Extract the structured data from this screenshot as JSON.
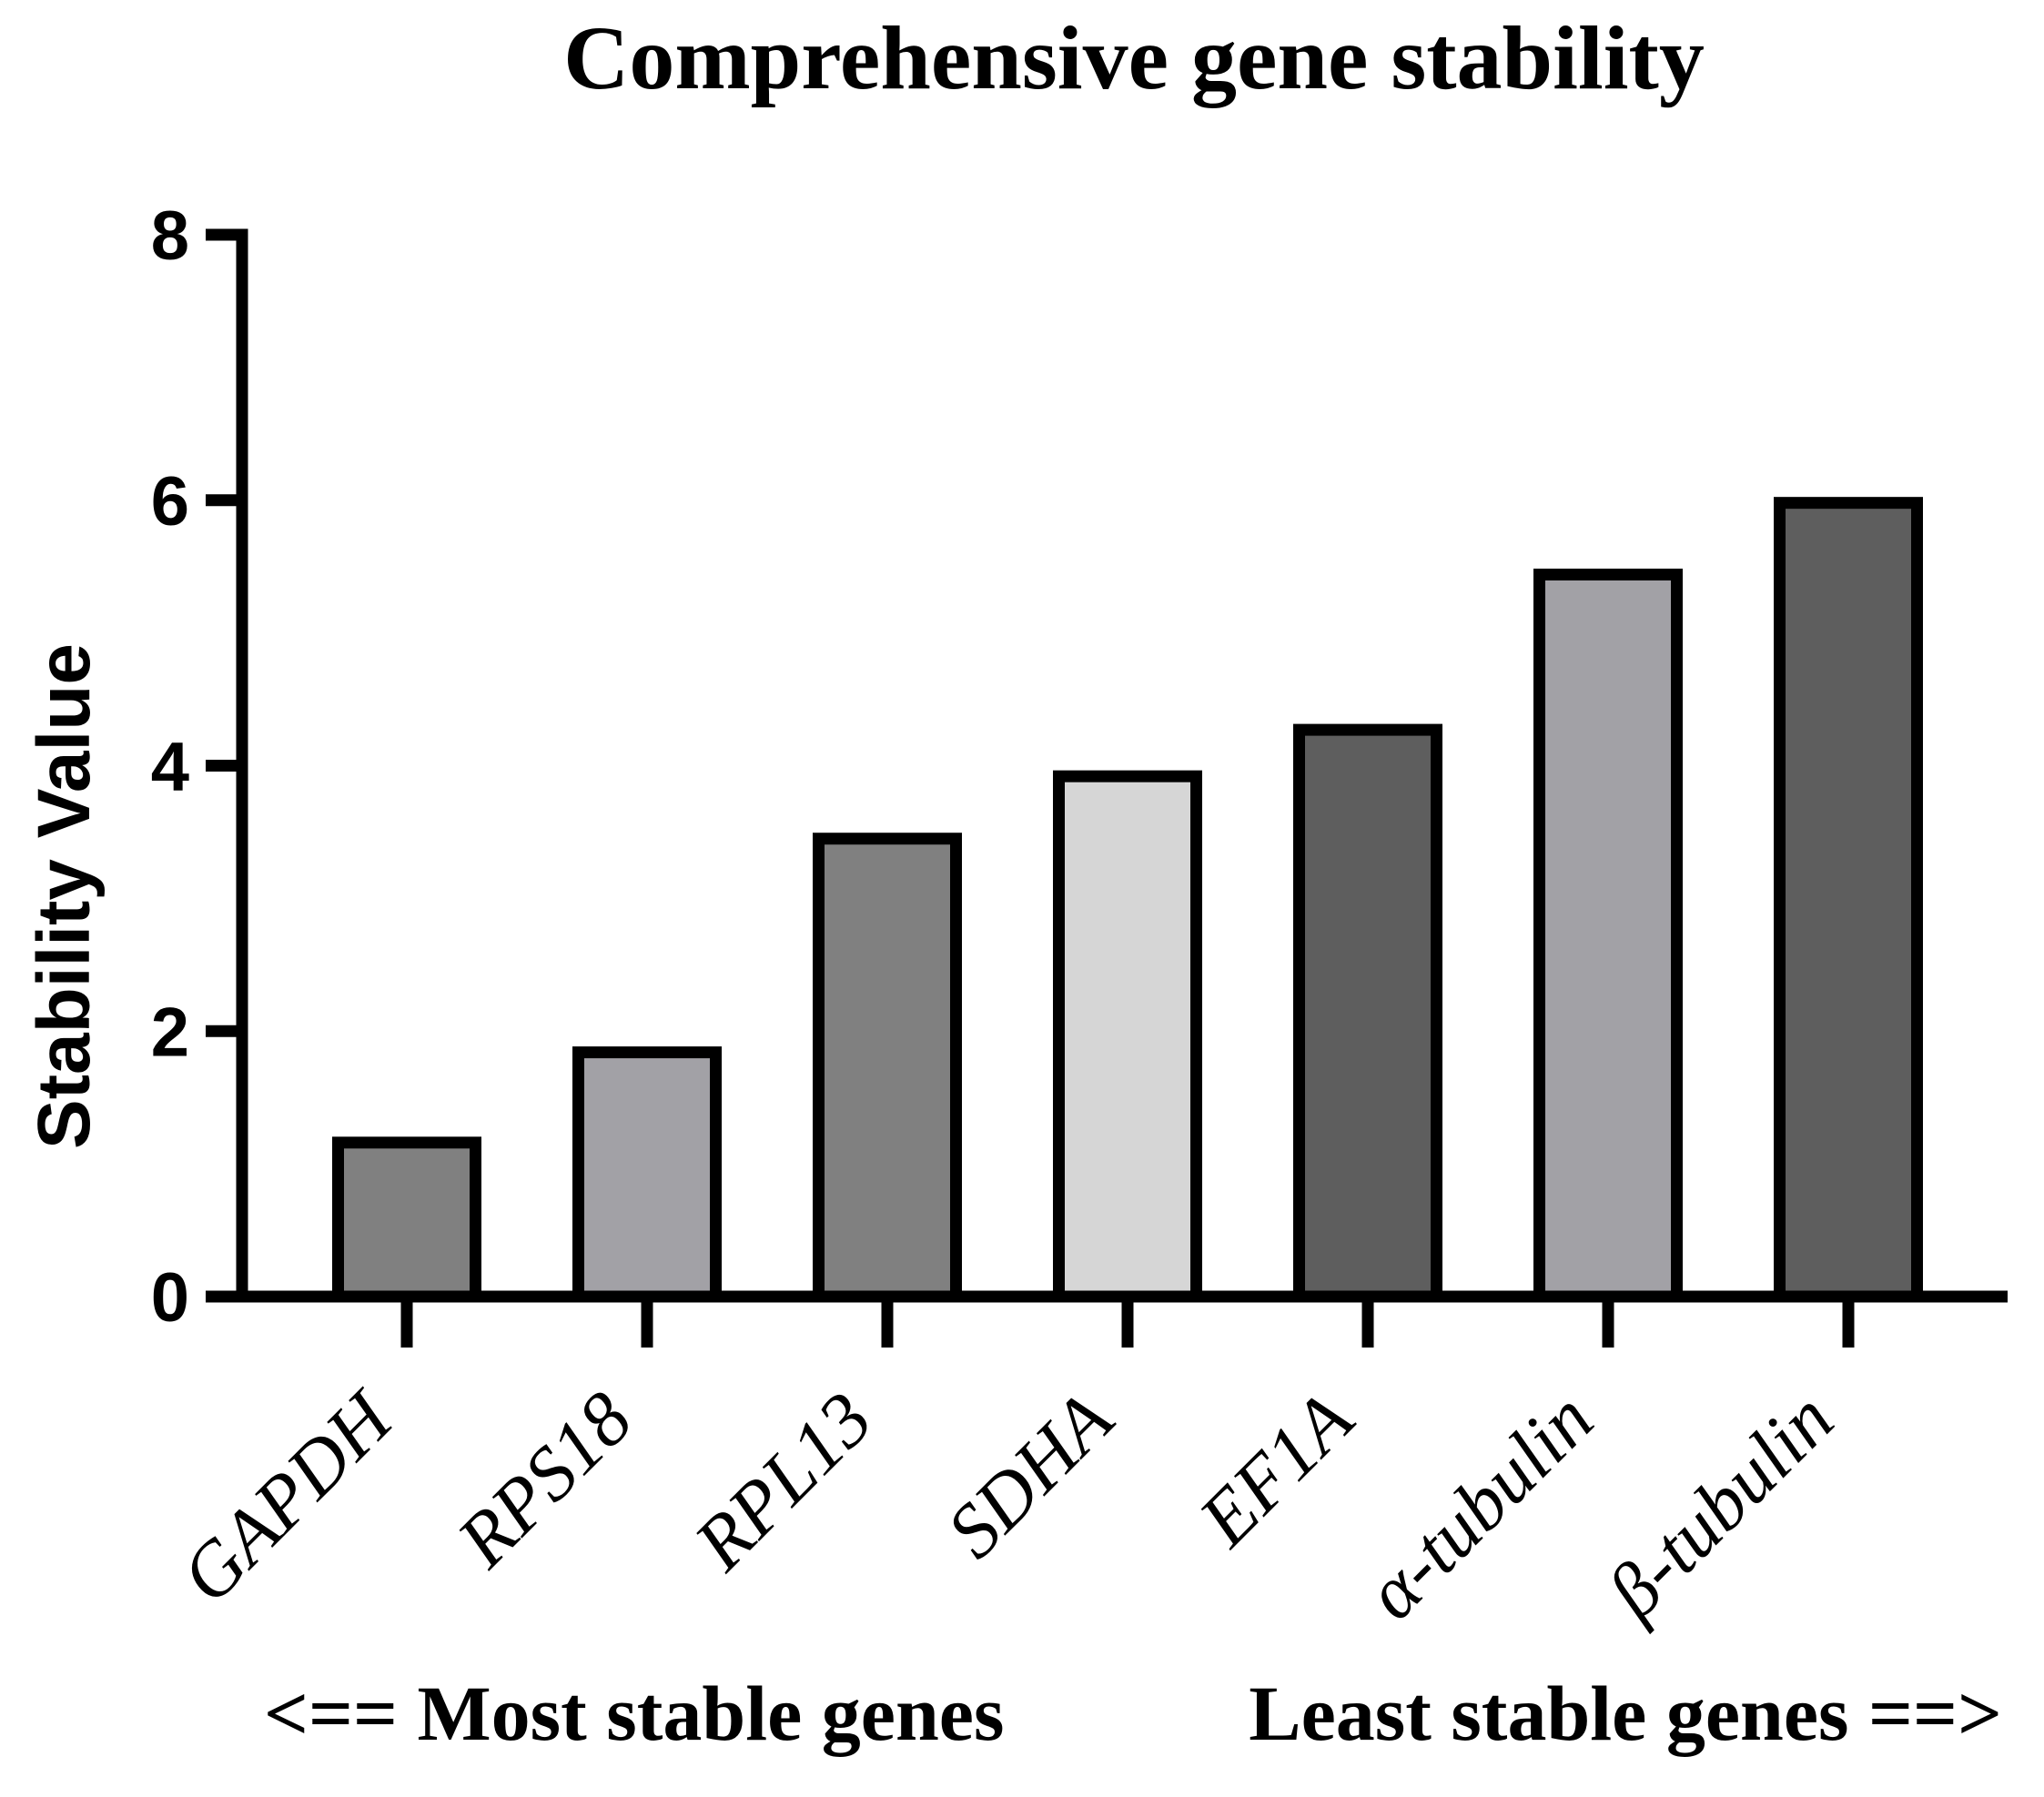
{
  "chart_data": {
    "type": "bar",
    "title": "Comprehensive gene stability",
    "ylabel": "Stability Value",
    "xlabel": "",
    "ylim": [
      0,
      8
    ],
    "yticks": [
      "0",
      "2",
      "4",
      "6",
      "8"
    ],
    "categories": [
      "GAPDH",
      "RPS18",
      "RPL13",
      "SDHA",
      "EF1A",
      "α-tubulin",
      "β-tubulin"
    ],
    "values": [
      1.16,
      1.84,
      3.45,
      3.92,
      4.27,
      5.44,
      5.98
    ],
    "bar_colors": [
      "#808080",
      "#a2a1a6",
      "#808080",
      "#d6d6d6",
      "#5e5e5e",
      "#a2a1a6",
      "#5e5e5e"
    ],
    "edge_color": "#000000",
    "annotation_left": "<== Most stable genes",
    "annotation_right": "Least stable genes ==>"
  }
}
